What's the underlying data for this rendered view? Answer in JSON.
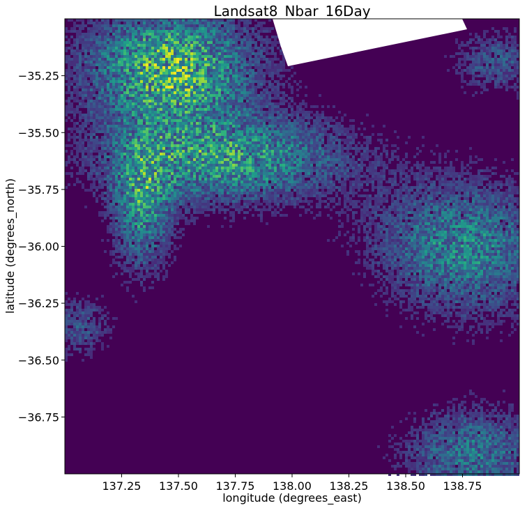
{
  "chart_data": {
    "type": "heatmap",
    "title": "Landsat8_Nbar_16Day",
    "xlabel": "longitude (degrees_east)",
    "ylabel": "latitude (degrees_north)",
    "xlim": [
      137.0,
      139.0
    ],
    "ylim": [
      -35.0,
      -37.0
    ],
    "xticks": [
      137.25,
      137.5,
      137.75,
      138.0,
      138.25,
      138.5,
      138.75
    ],
    "xtick_labels": [
      "137.25",
      "137.50",
      "137.75",
      "138.00",
      "138.25",
      "138.50",
      "138.75"
    ],
    "yticks": [
      -36.75,
      -36.5,
      -36.25,
      -36.0,
      -35.75,
      -35.5,
      -35.25
    ],
    "ytick_labels": [
      "−36.75",
      "−36.50",
      "−36.25",
      "−36.00",
      "−35.75",
      "−35.50",
      "−35.25"
    ],
    "colormap": "viridis",
    "colors": {
      "low": "#440154",
      "mid": "#21918c",
      "high": "#fde725",
      "nodata": "#ffffff"
    },
    "grid": false,
    "legend": "none"
  }
}
